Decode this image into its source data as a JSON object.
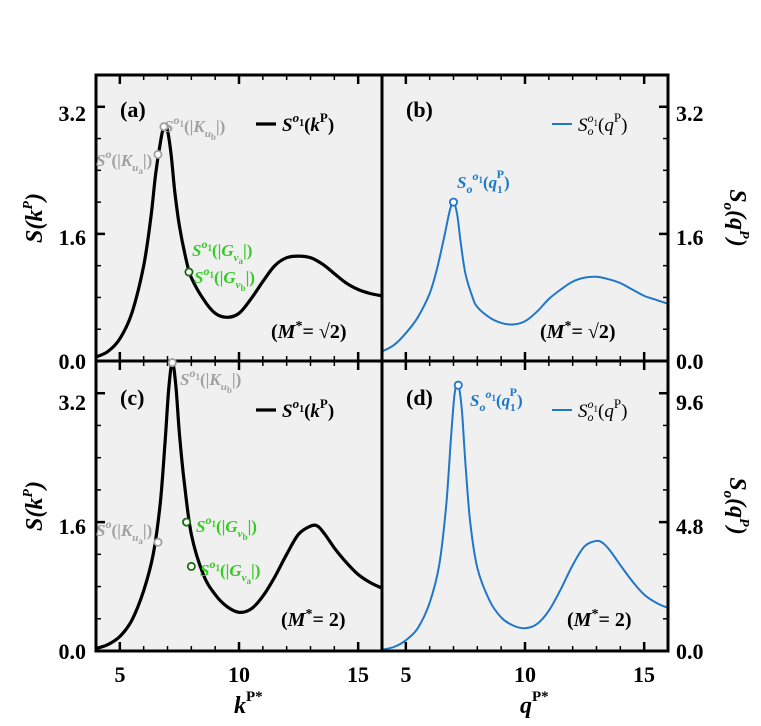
{
  "colors": {
    "panel_bg": "#f0f0f0",
    "black": "#000000",
    "blue": "#1f77c9",
    "gray": "#a0a0a0",
    "green": "#33cc22"
  },
  "chart_data": [
    {
      "id": "a",
      "type": "line",
      "panel_label": "(a)",
      "legend": "S^{o1}(k^P)",
      "legend_placement": "top-right",
      "annotation": "(M* = √2)",
      "color": "#000000",
      "xlim": [
        4,
        16
      ],
      "ylim": [
        0,
        3.6
      ],
      "yticks": [
        0.0,
        1.6,
        3.2
      ],
      "ytick_labels": [
        "0.0",
        "1.6",
        "3.2"
      ],
      "ylabel": "S(k^P)",
      "x": [
        4,
        4.5,
        5,
        5.5,
        6,
        6.3,
        6.5,
        6.7,
        6.85,
        7.0,
        7.15,
        7.3,
        7.5,
        7.8,
        8.0,
        8.5,
        9.0,
        9.5,
        10.0,
        10.5,
        11.0,
        11.5,
        12.0,
        12.5,
        13.0,
        13.5,
        14.0,
        14.5,
        15.0,
        15.5,
        16.0
      ],
      "y": [
        0.05,
        0.12,
        0.28,
        0.6,
        1.2,
        1.8,
        2.35,
        2.75,
        2.95,
        2.9,
        2.6,
        2.15,
        1.7,
        1.25,
        1.05,
        0.78,
        0.6,
        0.55,
        0.6,
        0.78,
        1.0,
        1.2,
        1.3,
        1.32,
        1.3,
        1.22,
        1.1,
        0.98,
        0.9,
        0.85,
        0.82
      ],
      "markers": [
        {
          "label": "S^{o}(|K_{ua}|)",
          "x": 6.6,
          "y": 2.6,
          "color": "#a0a0a0"
        },
        {
          "label": "S^{o1}(|K_{ub}|)",
          "x": 6.85,
          "y": 2.95,
          "color": "#a0a0a0"
        },
        {
          "label": "S^{o1}(|G_{va}|)",
          "x": 7.9,
          "y": 1.12,
          "color": "#33cc22"
        },
        {
          "label": "S^{o1}(|G_{vb}|)",
          "x": 7.9,
          "y": 1.12,
          "color": "#33cc22"
        }
      ]
    },
    {
      "id": "b",
      "type": "line",
      "panel_label": "(b)",
      "legend": "S_o^{o1}(q^P)",
      "legend_placement": "top-right",
      "annotation": "(M* = √2)",
      "color": "#1f77c9",
      "xlim": [
        4,
        16
      ],
      "ylim": [
        0,
        3.6
      ],
      "yticks": [
        0.0,
        1.6,
        3.2
      ],
      "ytick_labels": [
        "0.0",
        "1.6",
        "3.2"
      ],
      "ylabel": "S_o(q^P)",
      "x": [
        4,
        4.5,
        5,
        5.5,
        6,
        6.3,
        6.6,
        6.85,
        7.0,
        7.15,
        7.3,
        7.5,
        7.8,
        8.0,
        8.5,
        9.0,
        9.5,
        10.0,
        10.5,
        11.0,
        11.5,
        12.0,
        12.5,
        13.0,
        13.5,
        14.0,
        14.5,
        15.0,
        15.5,
        16.0
      ],
      "y": [
        0.12,
        0.2,
        0.35,
        0.55,
        0.85,
        1.15,
        1.55,
        1.9,
        2.0,
        1.85,
        1.5,
        1.1,
        0.8,
        0.68,
        0.55,
        0.48,
        0.46,
        0.5,
        0.62,
        0.78,
        0.9,
        1.0,
        1.05,
        1.06,
        1.03,
        0.98,
        0.9,
        0.82,
        0.77,
        0.72
      ],
      "markers": [
        {
          "label": "S_o^{o1}(q_1^P)",
          "x": 7.0,
          "y": 2.0,
          "color": "#1f77c9"
        }
      ]
    },
    {
      "id": "c",
      "type": "line",
      "panel_label": "(c)",
      "legend": "S^{o1}(k^P)",
      "legend_placement": "top-right",
      "annotation": "(M* = 2)",
      "color": "#000000",
      "xlim": [
        4,
        16
      ],
      "ylim": [
        0,
        3.6
      ],
      "xticks": [
        5,
        10,
        15
      ],
      "xtick_labels": [
        "5",
        "10",
        "15"
      ],
      "yticks": [
        0.0,
        1.6,
        3.2
      ],
      "ytick_labels": [
        "0.0",
        "1.6",
        "3.2"
      ],
      "ylabel": "S(k^P)",
      "xlabel": "k^{P*}",
      "x": [
        4,
        4.5,
        5,
        5.5,
        6,
        6.4,
        6.7,
        6.9,
        7.05,
        7.2,
        7.35,
        7.5,
        7.7,
        8.0,
        8.5,
        9.0,
        9.5,
        10.0,
        10.5,
        11.0,
        11.5,
        12.0,
        12.5,
        13.0,
        13.3,
        13.6,
        14.0,
        14.5,
        15.0,
        15.5,
        16.0
      ],
      "y": [
        0.03,
        0.08,
        0.18,
        0.38,
        0.75,
        1.2,
        1.85,
        2.6,
        3.25,
        3.58,
        3.3,
        2.7,
        2.1,
        1.45,
        0.95,
        0.7,
        0.55,
        0.48,
        0.52,
        0.68,
        0.92,
        1.2,
        1.45,
        1.55,
        1.55,
        1.45,
        1.28,
        1.1,
        0.95,
        0.85,
        0.78
      ],
      "markers": [
        {
          "label": "S^{o}(|K_{ua}|)",
          "x": 6.6,
          "y": 1.35,
          "color": "#a0a0a0"
        },
        {
          "label": "S^{o1}(|K_{ub}|)",
          "x": 7.2,
          "y": 3.58,
          "color": "#a0a0a0"
        },
        {
          "label": "S^{o1}(|G_{vb}|)",
          "x": 7.8,
          "y": 1.6,
          "color": "#33cc22"
        },
        {
          "label": "S^{o1}(|G_{va}|)",
          "x": 8.0,
          "y": 1.05,
          "color": "#33cc22"
        }
      ]
    },
    {
      "id": "d",
      "type": "line",
      "panel_label": "(d)",
      "legend": "S_o^{o1}(q^P)",
      "legend_placement": "top-right",
      "annotation": "(M* = 2)",
      "color": "#1f77c9",
      "xlim": [
        4,
        16
      ],
      "ylim": [
        0,
        10.8
      ],
      "xticks": [
        5,
        10,
        15
      ],
      "xtick_labels": [
        "5",
        "10",
        "15"
      ],
      "yticks": [
        0.0,
        4.8,
        9.6
      ],
      "ytick_labels": [
        "0.0",
        "4.8",
        "9.6"
      ],
      "ylabel": "S_o(q^P)",
      "xlabel": "q^{P*}",
      "x": [
        4,
        4.5,
        5,
        5.5,
        6,
        6.4,
        6.7,
        6.9,
        7.05,
        7.2,
        7.35,
        7.5,
        7.7,
        8.0,
        8.5,
        9.0,
        9.5,
        10.0,
        10.5,
        11.0,
        11.5,
        12.0,
        12.5,
        13.0,
        13.3,
        13.6,
        14.0,
        14.5,
        15.0,
        15.5,
        16.0
      ],
      "y": [
        0.05,
        0.15,
        0.4,
        0.85,
        1.8,
        3.2,
        5.5,
        8.0,
        9.6,
        9.9,
        9.0,
        7.0,
        4.8,
        3.1,
        1.9,
        1.25,
        0.95,
        0.85,
        1.0,
        1.5,
        2.3,
        3.2,
        3.9,
        4.1,
        4.0,
        3.7,
        3.2,
        2.6,
        2.1,
        1.8,
        1.6
      ],
      "markers": [
        {
          "label": "S_o^{o1}(q_1^P)",
          "x": 7.2,
          "y": 9.9,
          "color": "#1f77c9"
        }
      ]
    }
  ]
}
